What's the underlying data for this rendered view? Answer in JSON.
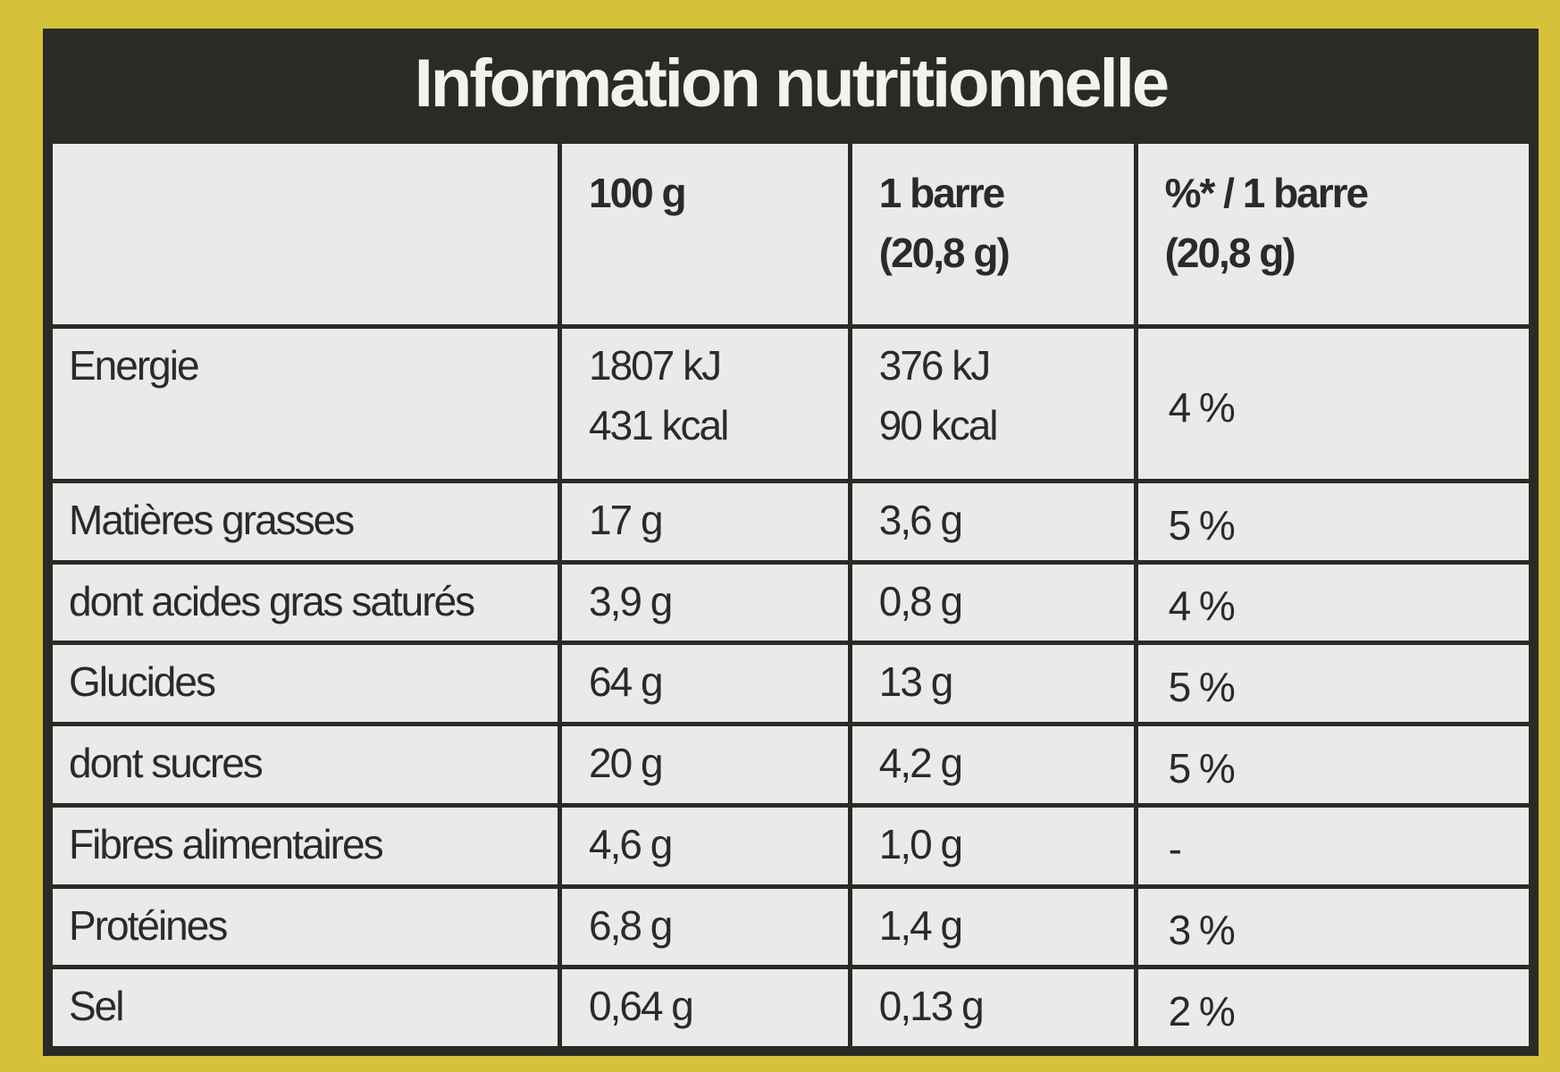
{
  "header": {
    "title": "Information nutritionnelle"
  },
  "table": {
    "columns": [
      [],
      [
        "100 g"
      ],
      [
        "1 barre",
        "(20,8 g)"
      ],
      [
        "%* / 1 barre",
        "(20,8 g)"
      ]
    ],
    "rows": [
      [
        [
          "Energie"
        ],
        [
          "1807 kJ",
          "431 kcal"
        ],
        [
          "376 kJ",
          "90 kcal"
        ],
        [
          "4 %"
        ]
      ],
      [
        [
          "Matières grasses"
        ],
        [
          "17 g"
        ],
        [
          "3,6 g"
        ],
        [
          "5 %"
        ]
      ],
      [
        [
          "dont acides gras saturés"
        ],
        [
          "3,9 g"
        ],
        [
          "0,8 g"
        ],
        [
          "4 %"
        ]
      ],
      [
        [
          "Glucides"
        ],
        [
          "64 g"
        ],
        [
          "13 g"
        ],
        [
          "5 %"
        ]
      ],
      [
        [
          "dont sucres"
        ],
        [
          "20 g"
        ],
        [
          "4,2 g"
        ],
        [
          "5 %"
        ]
      ],
      [
        [
          "Fibres alimentaires"
        ],
        [
          "4,6 g"
        ],
        [
          "1,0 g"
        ],
        [
          "-"
        ]
      ],
      [
        [
          "Protéines"
        ],
        [
          "6,8 g"
        ],
        [
          "1,4 g"
        ],
        [
          "3 %"
        ]
      ],
      [
        [
          "Sel"
        ],
        [
          "0,64 g"
        ],
        [
          "0,13 g"
        ],
        [
          "2 %"
        ]
      ]
    ]
  }
}
